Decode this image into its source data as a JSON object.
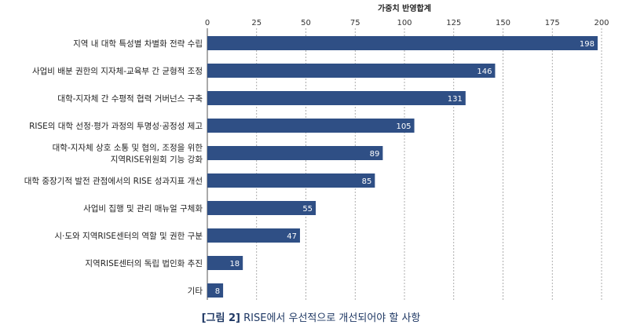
{
  "chart_data": {
    "type": "bar",
    "orientation": "horizontal",
    "xlabel": "가중치 반영합계",
    "xlim": [
      0,
      200
    ],
    "xticks": [
      0,
      25,
      50,
      75,
      100,
      125,
      150,
      175,
      200
    ],
    "grid": true,
    "categories": [
      [
        "지역 내 대학 특성별 차별화 전략 수립"
      ],
      [
        "사업비 배분 권한의 지자체-교육부 간 균형적 조정"
      ],
      [
        "대학-지자체 간 수평적 협력 거버넌스 구축"
      ],
      [
        "RISE의 대학 선정·평가 과정의 투명성·공정성 제고"
      ],
      [
        "대학-지자체 상호 소통 및 협의, 조정을 위한",
        "지역RISE위원회 기능 강화"
      ],
      [
        "대학 중장기적 발전 관점에서의 RISE 성과지표 개선"
      ],
      [
        "사업비 집행 및 관리 매뉴얼 구체화"
      ],
      [
        "시·도와 지역RISE센터의 역할 및 권한 구분"
      ],
      [
        "지역RISE센터의 독립 법인화 추진"
      ],
      [
        "기타"
      ]
    ],
    "values": [
      198,
      146,
      131,
      105,
      89,
      85,
      55,
      47,
      18,
      8
    ],
    "bar_color": "#2f4f85"
  },
  "caption": {
    "figure_label": "[그림 2]",
    "text": " RISE에서 우선적으로 개선되어야 할 사항"
  }
}
